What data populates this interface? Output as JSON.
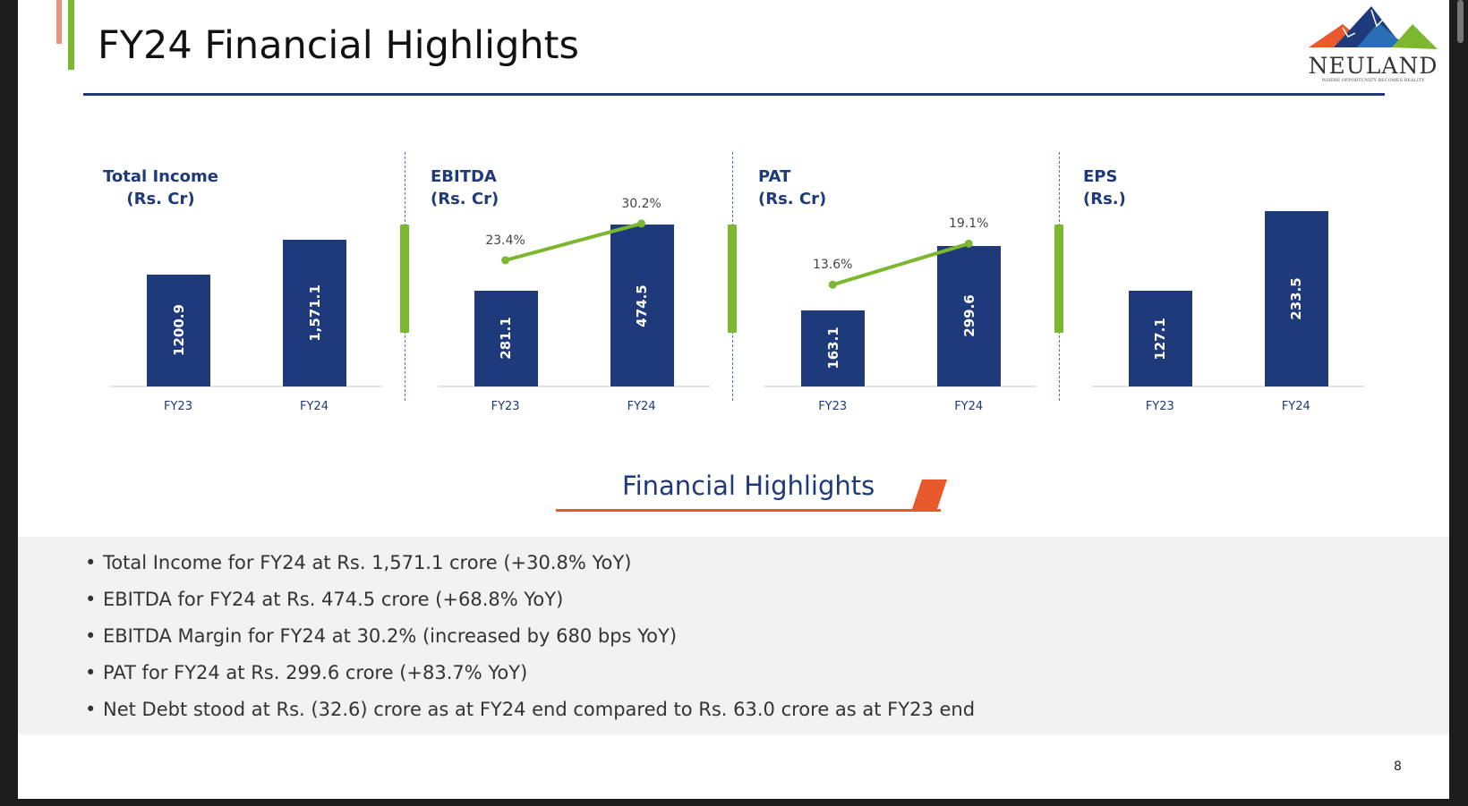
{
  "header": {
    "title": "FY24 Financial Highlights"
  },
  "logo": {
    "name": "NEULAND",
    "tagline": "WHERE OPPORTUNITY BECOMES REALITY"
  },
  "colors": {
    "navy": "#1f3a7a",
    "green": "#7cb82f",
    "orange": "#e85a2c",
    "salmon": "#ef9078"
  },
  "chart_data": [
    {
      "type": "bar",
      "title": "Total Income",
      "unit": "(Rs. Cr)",
      "categories": [
        "FY23",
        "FY24"
      ],
      "values": [
        1200.9,
        1571.1
      ],
      "value_labels": [
        "1200.9",
        "1,571.1"
      ]
    },
    {
      "type": "bar",
      "title": "EBITDA",
      "unit": "(Rs. Cr)",
      "categories": [
        "FY23",
        "FY24"
      ],
      "values": [
        281.1,
        474.5
      ],
      "value_labels": [
        "281.1",
        "474.5"
      ],
      "margin_line": {
        "values": [
          23.4,
          30.2
        ],
        "labels": [
          "23.4%",
          "30.2%"
        ]
      }
    },
    {
      "type": "bar",
      "title": "PAT",
      "unit": "(Rs. Cr)",
      "categories": [
        "FY23",
        "FY24"
      ],
      "values": [
        163.1,
        299.6
      ],
      "value_labels": [
        "163.1",
        "299.6"
      ],
      "margin_line": {
        "values": [
          13.6,
          19.1
        ],
        "labels": [
          "13.6%",
          "19.1%"
        ]
      }
    },
    {
      "type": "bar",
      "title": "EPS",
      "unit": "(Rs.)",
      "categories": [
        "FY23",
        "FY24"
      ],
      "values": [
        127.1,
        233.5
      ],
      "value_labels": [
        "127.1",
        "233.5"
      ]
    }
  ],
  "highlights": {
    "heading": "Financial Highlights",
    "bullets": [
      "Total Income for FY24 at Rs. 1,571.1 crore (+30.8% YoY)",
      "EBITDA for FY24 at Rs. 474.5 crore (+68.8% YoY)",
      "EBITDA Margin for FY24 at 30.2% (increased by 680 bps YoY)",
      "PAT for FY24 at Rs. 299.6 crore (+83.7% YoY)",
      "Net Debt stood at Rs. (32.6) crore as at FY24 end compared to Rs. 63.0 crore as at FY23 end"
    ]
  },
  "page_number": "8"
}
